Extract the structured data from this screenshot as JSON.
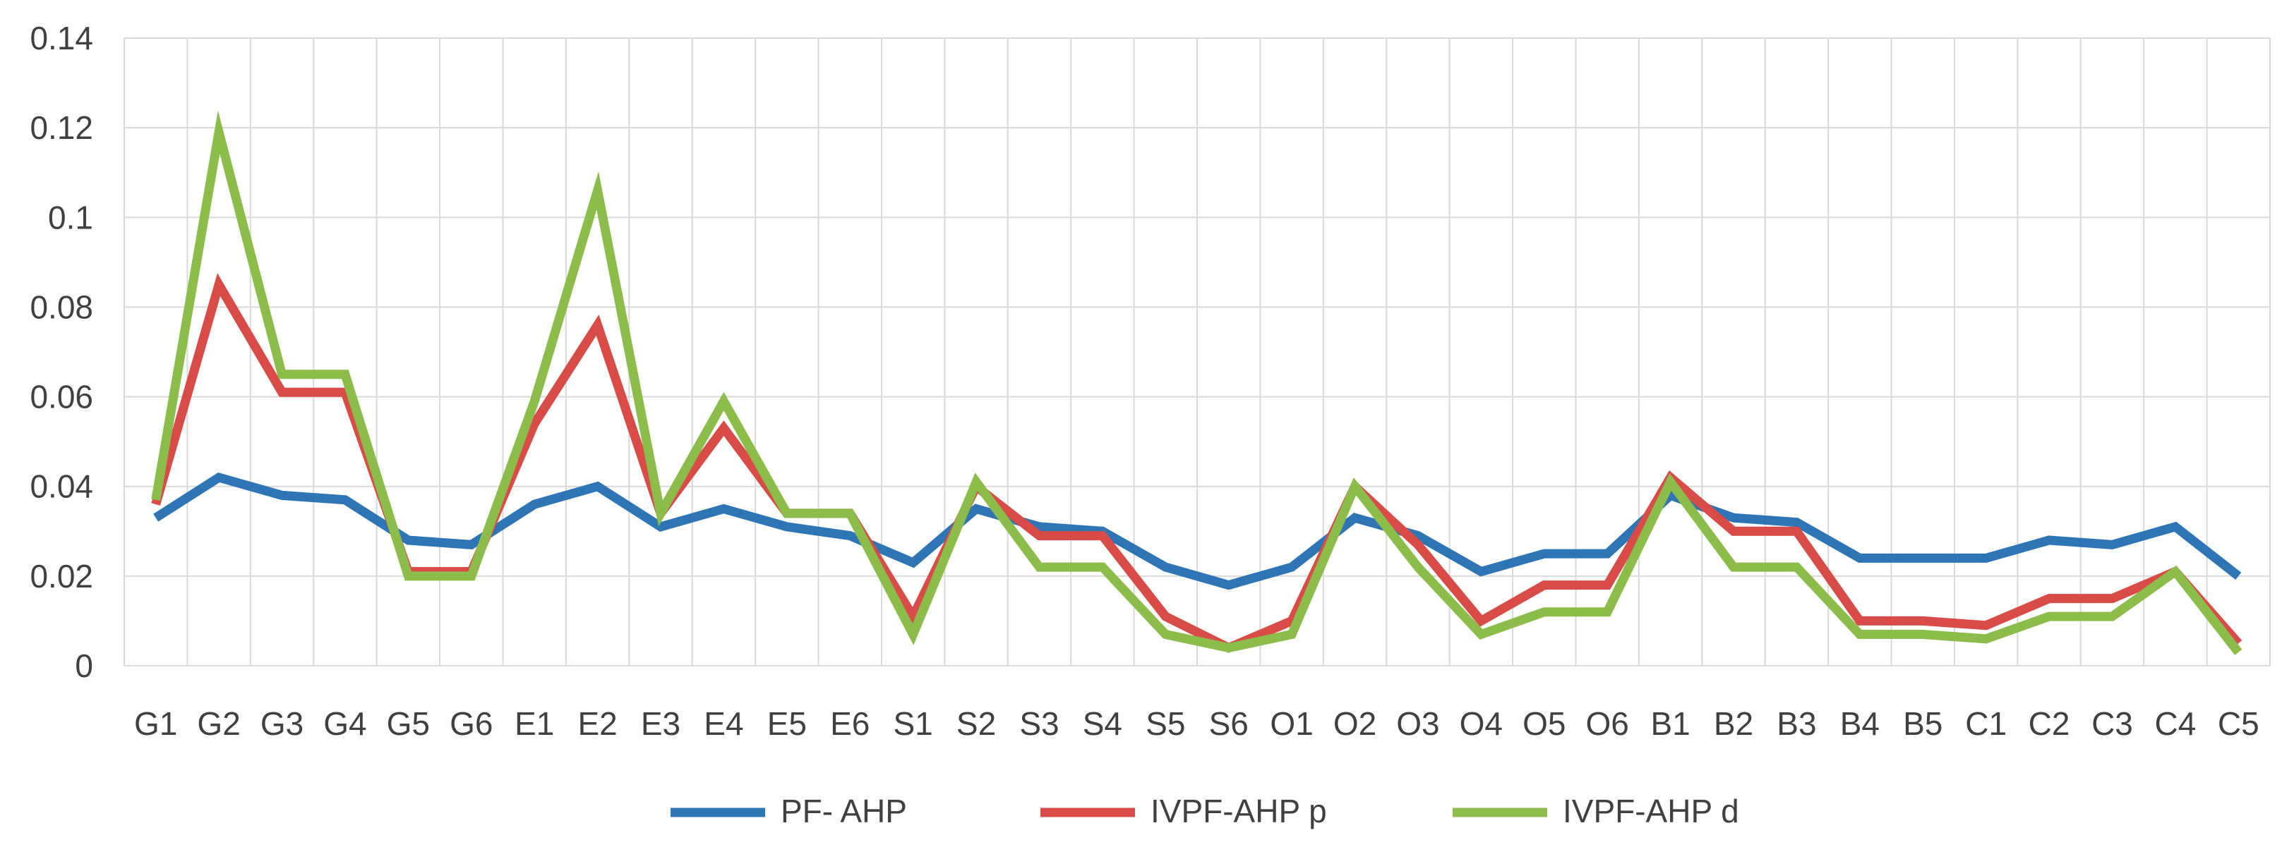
{
  "chart_data": {
    "type": "line",
    "title": "",
    "xlabel": "",
    "ylabel": "",
    "ylim": [
      0,
      0.14
    ],
    "y_ticks": [
      0,
      0.02,
      0.04,
      0.06,
      0.08,
      0.1,
      0.12,
      0.14
    ],
    "y_tick_labels": [
      "0",
      "0.02",
      "0.04",
      "0.06",
      "0.08",
      "0.1",
      "0.12",
      "0.14"
    ],
    "grid": true,
    "legend_position": "bottom",
    "categories": [
      "G1",
      "G2",
      "G3",
      "G4",
      "G5",
      "G6",
      "E1",
      "E2",
      "E3",
      "E4",
      "E5",
      "E6",
      "S1",
      "S2",
      "S3",
      "S4",
      "S5",
      "S6",
      "O1",
      "O2",
      "O3",
      "O4",
      "O5",
      "O6",
      "B1",
      "B2",
      "B3",
      "B4",
      "B5",
      "C1",
      "C2",
      "C3",
      "C4",
      "C5"
    ],
    "series": [
      {
        "name": "PF- AHP",
        "color": "#2e75b6",
        "values": [
          0.033,
          0.042,
          0.038,
          0.037,
          0.028,
          0.027,
          0.036,
          0.04,
          0.031,
          0.035,
          0.031,
          0.029,
          0.023,
          0.035,
          0.031,
          0.03,
          0.022,
          0.018,
          0.022,
          0.033,
          0.029,
          0.021,
          0.025,
          0.025,
          0.038,
          0.033,
          0.032,
          0.024,
          0.024,
          0.024,
          0.028,
          0.027,
          0.031,
          0.02
        ]
      },
      {
        "name": "IVPF-AHP p",
        "color": "#d94b47",
        "values": [
          0.036,
          0.085,
          0.061,
          0.061,
          0.021,
          0.021,
          0.054,
          0.076,
          0.034,
          0.053,
          0.034,
          0.034,
          0.011,
          0.04,
          0.029,
          0.029,
          0.011,
          0.004,
          0.01,
          0.04,
          0.027,
          0.01,
          0.018,
          0.018,
          0.042,
          0.03,
          0.03,
          0.01,
          0.01,
          0.009,
          0.015,
          0.015,
          0.021,
          0.005
        ]
      },
      {
        "name": "IVPF-AHP d",
        "color": "#8cbd4b",
        "values": [
          0.037,
          0.119,
          0.065,
          0.065,
          0.02,
          0.02,
          0.059,
          0.106,
          0.034,
          0.059,
          0.034,
          0.034,
          0.007,
          0.041,
          0.022,
          0.022,
          0.007,
          0.004,
          0.007,
          0.04,
          0.022,
          0.007,
          0.012,
          0.012,
          0.041,
          0.022,
          0.022,
          0.007,
          0.007,
          0.006,
          0.011,
          0.011,
          0.021,
          0.003
        ]
      }
    ]
  }
}
